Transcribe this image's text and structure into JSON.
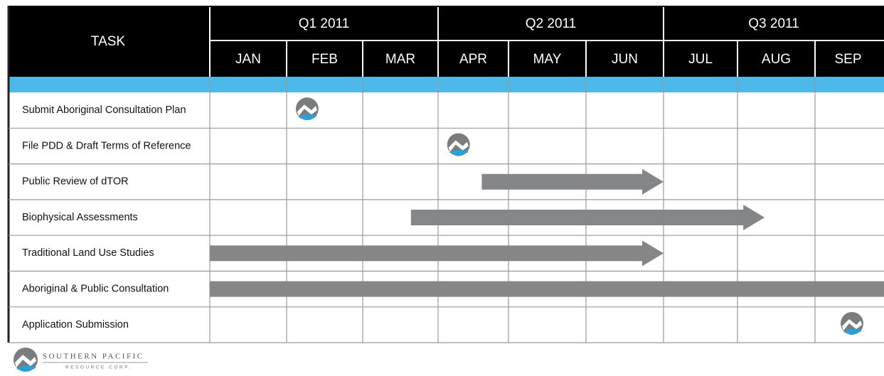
{
  "header": {
    "task": "TASK",
    "quarters": [
      "Q1 2011",
      "Q2 2011",
      "Q3 2011"
    ],
    "months": [
      "JAN",
      "FEB",
      "MAR",
      "APR",
      "MAY",
      "JUN",
      "JUL",
      "AUG",
      "SEP"
    ]
  },
  "tasks": [
    {
      "name": "Submit Aboriginal Consultation Plan",
      "milestone": 1.27
    },
    {
      "name": "File PDD & Draft Terms of Reference",
      "milestone": 3.29
    },
    {
      "name": "Public Review of dTOR",
      "start": 3.62,
      "end": 6.0,
      "arrow": true
    },
    {
      "name": "Biophysical Assessments",
      "start": 2.64,
      "end": 7.35,
      "arrow": true
    },
    {
      "name": "Traditional Land Use Studies",
      "start": 0,
      "end": 6.0,
      "arrow": true
    },
    {
      "name": "Aboriginal & Public Consultation",
      "start": 0,
      "end": 9.0,
      "arrow": false
    },
    {
      "name": "Application Submission",
      "milestone": 8.5
    }
  ],
  "logo": {
    "name": "SOUTHERN PACIFIC",
    "tagline": "RESOURCE CORP."
  }
}
